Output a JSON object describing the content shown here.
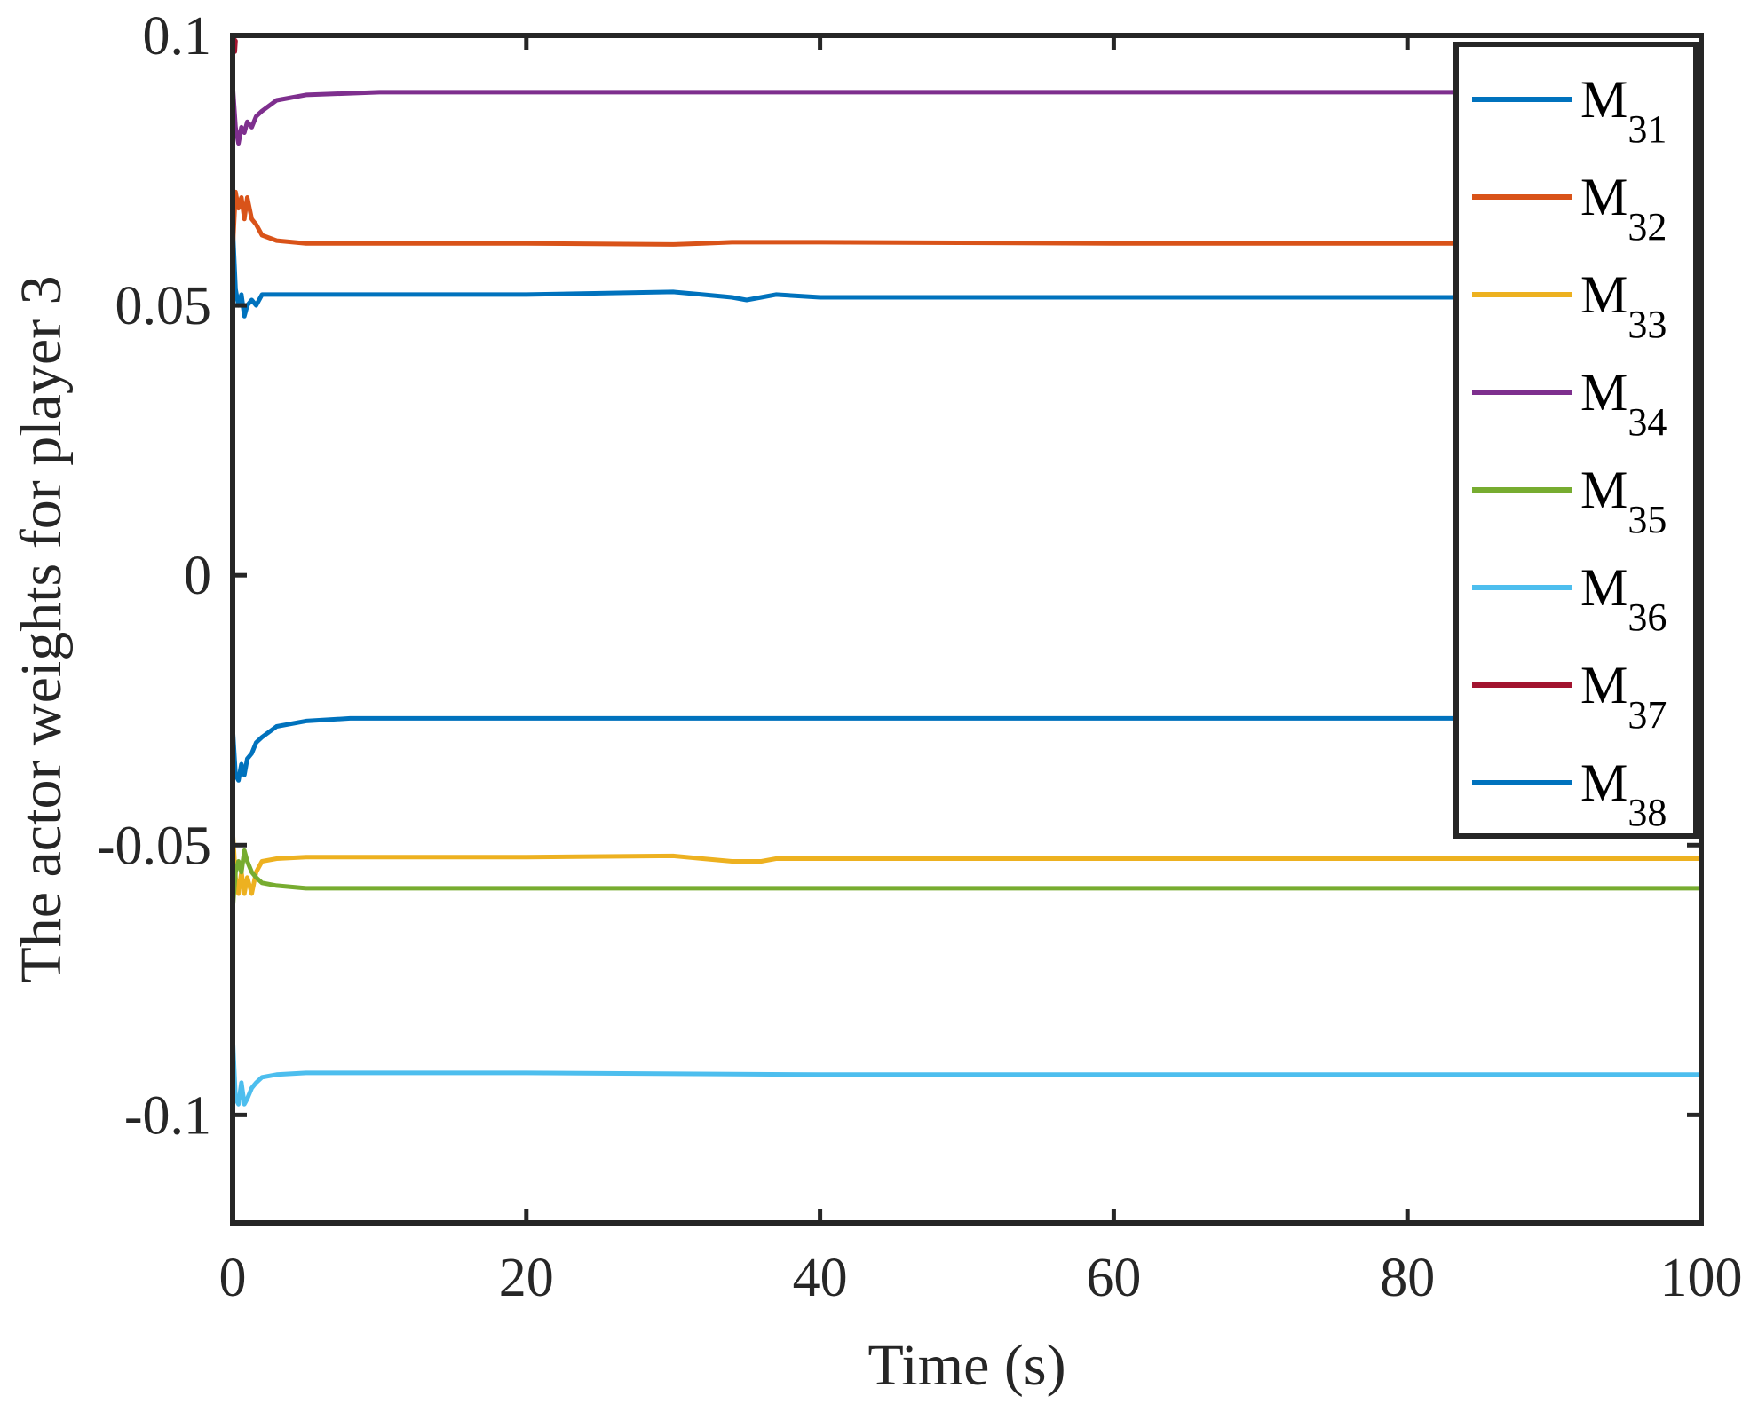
{
  "chart_data": {
    "type": "line",
    "title": "",
    "xlabel": "Time (s)",
    "ylabel": "The actor weights for player 3",
    "xlim": [
      0,
      100
    ],
    "ylim": [
      -0.12,
      0.1
    ],
    "xticks": [
      0,
      20,
      40,
      60,
      80,
      100
    ],
    "xtick_labels": [
      "0",
      "20",
      "40",
      "60",
      "80",
      "100"
    ],
    "yticks": [
      -0.1,
      -0.05,
      0,
      0.05,
      0.1
    ],
    "ytick_labels": [
      "-0.1",
      "-0.05",
      "0",
      "0.05",
      "0.1"
    ],
    "grid": false,
    "legend_position": "top-right",
    "series": [
      {
        "name": "M31",
        "base": "M",
        "sub": "31",
        "color": "#0072BD",
        "x": [
          0,
          0.2,
          0.4,
          0.6,
          0.8,
          1.0,
          1.3,
          1.6,
          2,
          3,
          5,
          10,
          20,
          30,
          32,
          34,
          35,
          36,
          37,
          40,
          60,
          80,
          100
        ],
        "y": [
          0.065,
          0.053,
          0.05,
          0.052,
          0.048,
          0.05,
          0.051,
          0.05,
          0.052,
          0.052,
          0.052,
          0.052,
          0.052,
          0.0525,
          0.052,
          0.0515,
          0.051,
          0.0515,
          0.052,
          0.0515,
          0.0515,
          0.0515,
          0.0515
        ]
      },
      {
        "name": "M32",
        "base": "M",
        "sub": "32",
        "color": "#D95319",
        "x": [
          0,
          0.2,
          0.4,
          0.6,
          0.8,
          1.0,
          1.3,
          1.6,
          2,
          3,
          5,
          10,
          20,
          30,
          32,
          34,
          40,
          60,
          80,
          100
        ],
        "y": [
          0.06,
          0.071,
          0.068,
          0.07,
          0.066,
          0.07,
          0.066,
          0.065,
          0.063,
          0.062,
          0.0615,
          0.0615,
          0.0615,
          0.0613,
          0.0615,
          0.0617,
          0.0617,
          0.0615,
          0.0615,
          0.0615
        ]
      },
      {
        "name": "M33",
        "base": "M",
        "sub": "33",
        "color": "#EDB120",
        "x": [
          0,
          0.2,
          0.4,
          0.6,
          0.8,
          1.0,
          1.3,
          1.6,
          2,
          3,
          5,
          10,
          20,
          30,
          32,
          34,
          36,
          37,
          40,
          60,
          80,
          100
        ],
        "y": [
          -0.047,
          -0.056,
          -0.059,
          -0.055,
          -0.059,
          -0.056,
          -0.059,
          -0.055,
          -0.053,
          -0.0525,
          -0.0522,
          -0.0522,
          -0.0522,
          -0.052,
          -0.0525,
          -0.053,
          -0.053,
          -0.0525,
          -0.0525,
          -0.0525,
          -0.0525,
          -0.0525
        ]
      },
      {
        "name": "M34",
        "base": "M",
        "sub": "34",
        "color": "#7E2F8E",
        "x": [
          0,
          0.2,
          0.4,
          0.6,
          0.8,
          1.0,
          1.3,
          1.6,
          2,
          3,
          5,
          10,
          20,
          40,
          60,
          80,
          100
        ],
        "y": [
          0.091,
          0.083,
          0.08,
          0.083,
          0.082,
          0.084,
          0.083,
          0.085,
          0.086,
          0.088,
          0.089,
          0.0895,
          0.0895,
          0.0895,
          0.0895,
          0.0895,
          0.0895
        ]
      },
      {
        "name": "M35",
        "base": "M",
        "sub": "35",
        "color": "#77AC30",
        "x": [
          0,
          0.2,
          0.4,
          0.6,
          0.8,
          1.0,
          1.3,
          1.6,
          2,
          3,
          5,
          10,
          20,
          40,
          60,
          80,
          100
        ],
        "y": [
          -0.062,
          -0.055,
          -0.053,
          -0.055,
          -0.051,
          -0.053,
          -0.055,
          -0.056,
          -0.057,
          -0.0575,
          -0.058,
          -0.058,
          -0.058,
          -0.058,
          -0.058,
          -0.058,
          -0.058
        ]
      },
      {
        "name": "M36",
        "base": "M",
        "sub": "36",
        "color": "#4DBEEE",
        "x": [
          0,
          0.2,
          0.4,
          0.6,
          0.8,
          1.0,
          1.3,
          1.6,
          2,
          3,
          5,
          10,
          20,
          40,
          60,
          80,
          100
        ],
        "y": [
          -0.085,
          -0.097,
          -0.098,
          -0.094,
          -0.098,
          -0.097,
          -0.095,
          -0.094,
          -0.093,
          -0.0925,
          -0.0922,
          -0.0922,
          -0.0922,
          -0.0925,
          -0.0925,
          -0.0925,
          -0.0925
        ]
      },
      {
        "name": "M37",
        "base": "M",
        "sub": "37",
        "color": "#A2142F",
        "x": [
          0,
          0.05,
          0.1,
          0.15,
          0.2
        ],
        "y": [
          0.1,
          0.098,
          0.1,
          0.097,
          0.099
        ]
      },
      {
        "name": "M38",
        "base": "M",
        "sub": "38",
        "color": "#0072BD",
        "x": [
          0,
          0.2,
          0.4,
          0.6,
          0.8,
          1.0,
          1.3,
          1.6,
          2,
          3,
          5,
          8,
          10,
          20,
          40,
          60,
          80,
          100
        ],
        "y": [
          -0.028,
          -0.037,
          -0.038,
          -0.035,
          -0.037,
          -0.034,
          -0.033,
          -0.031,
          -0.03,
          -0.028,
          -0.027,
          -0.0265,
          -0.0265,
          -0.0265,
          -0.0265,
          -0.0265,
          -0.0265,
          -0.0265
        ]
      }
    ]
  }
}
